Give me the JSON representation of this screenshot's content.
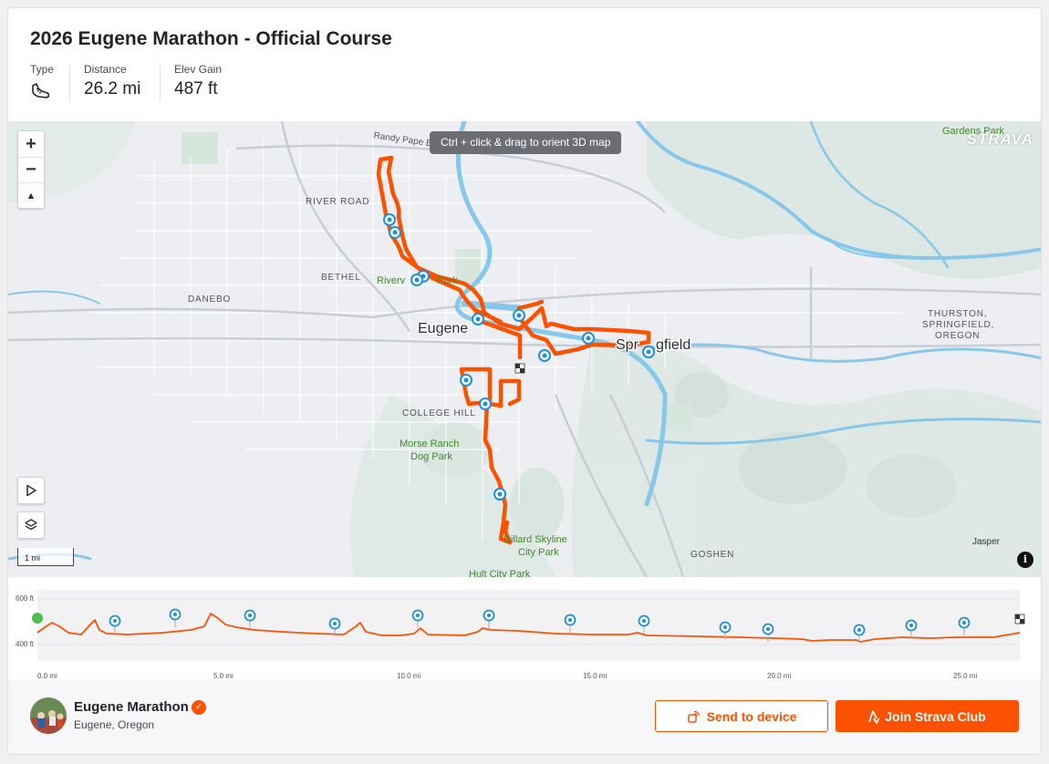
{
  "route": {
    "title": "2026 Eugene Marathon - Official Course",
    "stats": {
      "type_label": "Type",
      "type_icon": "running-shoe-icon",
      "distance_label": "Distance",
      "distance_value": "26.2 mi",
      "elev_label": "Elev Gain",
      "elev_value": "487 ft"
    }
  },
  "map": {
    "tooltip": "Ctrl + click & drag to orient 3D map",
    "logo": "STRAVA",
    "scale": "1 mi",
    "zoom_in": "+",
    "zoom_out": "−",
    "compass": "▲",
    "info": "i",
    "labels": {
      "randy_pape": "Randy Pape Beltline",
      "river_road": "RIVER ROAD",
      "bethel": "BETHEL",
      "danebo": "DANEBO",
      "riverview_park": "Riverv",
      "riverview_park_end": "Park",
      "eugene": "Eugene",
      "springfield_a": "Spr",
      "springfield_b": "gfield",
      "college_hill": "COLLEGE HILL",
      "morse_ranch_1": "Morse Ranch",
      "morse_ranch_2": "Dog Park",
      "dillard_1": "Dillard Skyline",
      "dillard_2": "City Park",
      "hult": "Hult City Park",
      "goshen": "GOSHEN",
      "jasper": "Jasper",
      "thurston_1": "THURSTON,",
      "thurston_2": "SPRINGFIELD,",
      "thurston_3": "OREGON",
      "gardens_park": "Gardens Park"
    },
    "colors": {
      "route": "#fc5200",
      "water": "#7ec6ea",
      "marker": "#1e90d8",
      "park_text": "#3f8a2b"
    }
  },
  "elevation": {
    "y_ticks": [
      "600 ft",
      "400 ft"
    ],
    "x_ticks": [
      "0.0 mi",
      "5.0 mi",
      "10.0 mi",
      "15.0 mi",
      "20.0 mi",
      "25.0 mi"
    ]
  },
  "footer": {
    "club_name": "Eugene Marathon",
    "club_location": "Eugene, Oregon",
    "verified_icon": "✓",
    "send_button": "Send to device",
    "join_button": "Join Strava Club"
  }
}
